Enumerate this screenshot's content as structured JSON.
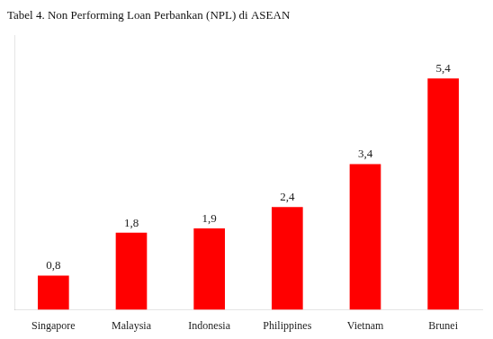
{
  "chart_data": {
    "type": "bar",
    "title": "Tabel 4. Non Performing Loan Perbankan (NPL) di ASEAN",
    "categories": [
      "Singapore",
      "Malaysia",
      "Indonesia",
      "Philippines",
      "Vietnam",
      "Brunei"
    ],
    "values": [
      0.8,
      1.8,
      1.9,
      2.4,
      3.4,
      5.4
    ],
    "value_labels": [
      "0,8",
      "1,8",
      "1,9",
      "2,4",
      "3,4",
      "5,4"
    ],
    "color": "#FF0000",
    "ylim": [
      0,
      6.4
    ],
    "data_labels": true,
    "tick_labels": "x",
    "grid": false
  }
}
